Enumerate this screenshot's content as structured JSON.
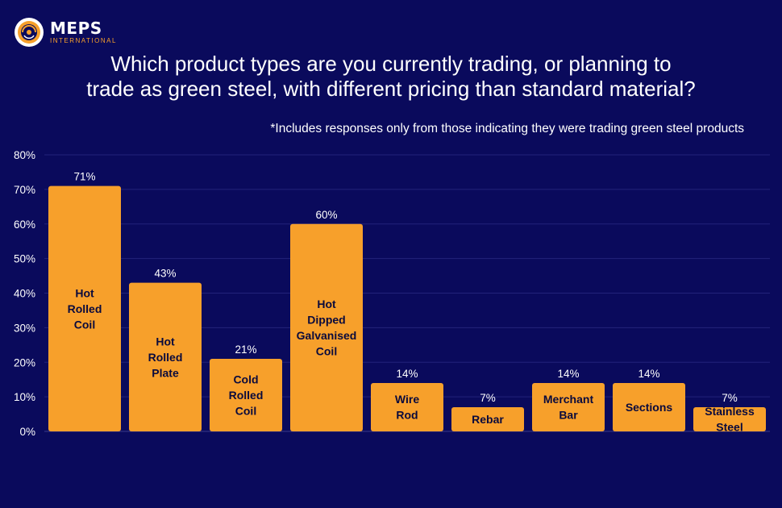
{
  "brand": {
    "name": "MEPS",
    "sub": "INTERNATIONAL",
    "colors": {
      "background": "#0a0a5c",
      "bar": "#f7a02b",
      "accent": "#f7a02b"
    }
  },
  "header": {
    "title_line1": "Which product types are you currently trading, or planning to",
    "title_line2": "trade as green steel, with different pricing than standard material?",
    "note": "*Includes responses only from those indicating they were trading green steel products"
  },
  "chart_data": {
    "type": "bar",
    "categories": [
      "Hot Rolled Coil",
      "Hot Rolled Plate",
      "Cold Rolled Coil",
      "Hot Dipped Galvanised Coil",
      "Wire Rod",
      "Rebar",
      "Merchant Bar",
      "Sections",
      "Stainless Steel"
    ],
    "category_lines": [
      [
        "Hot",
        "Rolled",
        "Coil"
      ],
      [
        "Hot",
        "Rolled",
        "Plate"
      ],
      [
        "Cold",
        "Rolled",
        "Coil"
      ],
      [
        "Hot",
        "Dipped",
        "Galvanised",
        "Coil"
      ],
      [
        "Wire",
        "Rod"
      ],
      [
        "Rebar"
      ],
      [
        "Merchant",
        "Bar"
      ],
      [
        "Sections"
      ],
      [
        "Stainless",
        "Steel"
      ]
    ],
    "values": [
      71,
      43,
      21,
      60,
      14,
      7,
      14,
      14,
      7
    ],
    "data_labels": [
      "71%",
      "43%",
      "21%",
      "60%",
      "14%",
      "7%",
      "14%",
      "14%",
      "7%"
    ],
    "ylim": [
      0,
      80
    ],
    "yticks": [
      "0%",
      "10%",
      "20%",
      "30%",
      "40%",
      "50%",
      "60%",
      "70%",
      "80%"
    ],
    "grid": true,
    "xlabel": "",
    "ylabel": ""
  }
}
